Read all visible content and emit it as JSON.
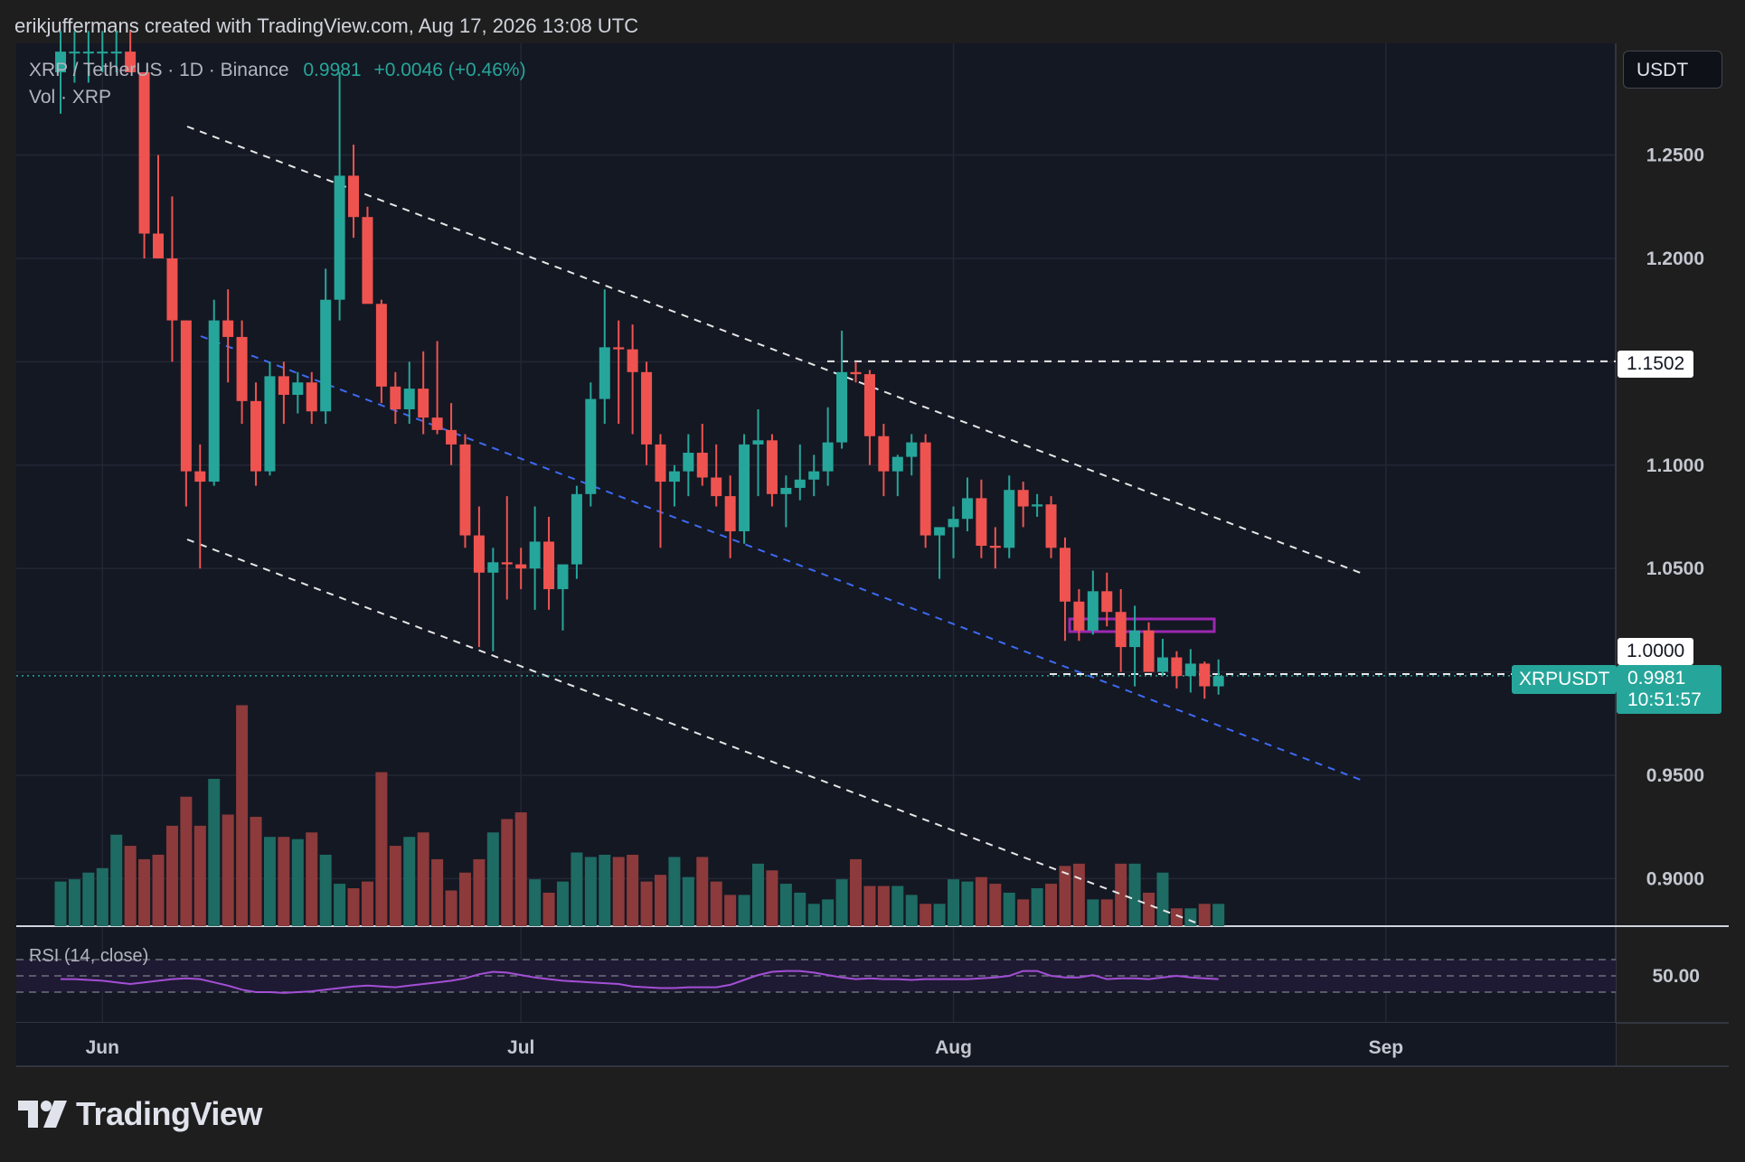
{
  "header": {
    "credit": "erikjuffermans created with TradingView.com, Aug 17, 2026 13:08 UTC"
  },
  "toolbar": {
    "currency_button": "USDT"
  },
  "legend": {
    "symbol": "XRP / TetherUS · 1D · Binance",
    "last": "0.9981",
    "change": "+0.0046 (+0.46%)",
    "volume": "Vol · XRP"
  },
  "rsi": {
    "label": "RSI (14, close)",
    "level_label": "50.00"
  },
  "price_tags": {
    "level_1": "1.1502",
    "level_2": "1.0000",
    "symbol": "XRPUSDT",
    "current": "0.9981",
    "countdown": "10:51:57"
  },
  "brand": {
    "name": "TradingView"
  },
  "colors": {
    "up": "#26a69a",
    "down": "#ef5350",
    "background": "#141823",
    "channel": "#ffffff",
    "midline": "#2962ff",
    "zone": "#9c27b0",
    "rsi": "#a34fd6"
  },
  "chart_data": {
    "type": "candlestick",
    "symbol": "XRP / TetherUS",
    "interval": "1D",
    "exchange": "Binance",
    "y_axis": {
      "ticks": [
        0.9,
        0.95,
        1.0,
        1.05,
        1.1,
        1.15,
        1.2,
        1.25
      ],
      "tick_labels": [
        "0.9000",
        "0.9500",
        "1.0500",
        "1.1000",
        "1.2000",
        "1.2500"
      ],
      "range": [
        0.877,
        1.304
      ]
    },
    "x_axis": {
      "labels": [
        "Jun",
        "Jul",
        "Aug",
        "Sep"
      ],
      "label_day_index": [
        3,
        33,
        64,
        95
      ]
    },
    "candles": [
      [
        1.29,
        1.31,
        1.27,
        1.3
      ],
      [
        1.3,
        1.31,
        1.285,
        1.3
      ],
      [
        1.3,
        1.31,
        1.285,
        1.3
      ],
      [
        1.3,
        1.31,
        1.29,
        1.3
      ],
      [
        1.3,
        1.31,
        1.29,
        1.3
      ],
      [
        1.3,
        1.31,
        1.29,
        1.29
      ],
      [
        1.29,
        1.29,
        1.2,
        1.212
      ],
      [
        1.212,
        1.25,
        1.2,
        1.2
      ],
      [
        1.2,
        1.23,
        1.15,
        1.17
      ],
      [
        1.17,
        1.17,
        1.08,
        1.097
      ],
      [
        1.097,
        1.11,
        1.05,
        1.092
      ],
      [
        1.092,
        1.18,
        1.09,
        1.17
      ],
      [
        1.17,
        1.185,
        1.14,
        1.162
      ],
      [
        1.162,
        1.17,
        1.12,
        1.131
      ],
      [
        1.131,
        1.14,
        1.09,
        1.097
      ],
      [
        1.097,
        1.15,
        1.095,
        1.143
      ],
      [
        1.143,
        1.15,
        1.12,
        1.134
      ],
      [
        1.134,
        1.145,
        1.125,
        1.14
      ],
      [
        1.14,
        1.145,
        1.12,
        1.126
      ],
      [
        1.126,
        1.195,
        1.12,
        1.18
      ],
      [
        1.18,
        1.29,
        1.17,
        1.24
      ],
      [
        1.24,
        1.255,
        1.21,
        1.22
      ],
      [
        1.22,
        1.225,
        1.18,
        1.178
      ],
      [
        1.178,
        1.18,
        1.13,
        1.138
      ],
      [
        1.138,
        1.145,
        1.12,
        1.127
      ],
      [
        1.127,
        1.15,
        1.12,
        1.137
      ],
      [
        1.137,
        1.155,
        1.115,
        1.123
      ],
      [
        1.123,
        1.16,
        1.115,
        1.117
      ],
      [
        1.117,
        1.13,
        1.1,
        1.11
      ],
      [
        1.11,
        1.115,
        1.06,
        1.066
      ],
      [
        1.066,
        1.08,
        1.012,
        1.048
      ],
      [
        1.048,
        1.06,
        1.01,
        1.053
      ],
      [
        1.053,
        1.085,
        1.035,
        1.052
      ],
      [
        1.052,
        1.06,
        1.04,
        1.05
      ],
      [
        1.05,
        1.08,
        1.03,
        1.063
      ],
      [
        1.063,
        1.075,
        1.03,
        1.04
      ],
      [
        1.04,
        1.05,
        1.02,
        1.052
      ],
      [
        1.052,
        1.09,
        1.045,
        1.086
      ],
      [
        1.086,
        1.14,
        1.08,
        1.132
      ],
      [
        1.132,
        1.185,
        1.12,
        1.157
      ],
      [
        1.157,
        1.17,
        1.12,
        1.156
      ],
      [
        1.156,
        1.168,
        1.115,
        1.145
      ],
      [
        1.145,
        1.15,
        1.1,
        1.11
      ],
      [
        1.11,
        1.115,
        1.06,
        1.092
      ],
      [
        1.092,
        1.1,
        1.08,
        1.097
      ],
      [
        1.097,
        1.115,
        1.085,
        1.106
      ],
      [
        1.106,
        1.12,
        1.09,
        1.094
      ],
      [
        1.094,
        1.11,
        1.08,
        1.085
      ],
      [
        1.085,
        1.095,
        1.055,
        1.068
      ],
      [
        1.068,
        1.115,
        1.062,
        1.11
      ],
      [
        1.11,
        1.127,
        1.085,
        1.112
      ],
      [
        1.112,
        1.115,
        1.08,
        1.086
      ],
      [
        1.086,
        1.095,
        1.07,
        1.089
      ],
      [
        1.089,
        1.11,
        1.083,
        1.093
      ],
      [
        1.093,
        1.105,
        1.085,
        1.097
      ],
      [
        1.097,
        1.128,
        1.09,
        1.111
      ],
      [
        1.111,
        1.165,
        1.108,
        1.145
      ],
      [
        1.145,
        1.15,
        1.14,
        1.144
      ],
      [
        1.144,
        1.146,
        1.1,
        1.114
      ],
      [
        1.114,
        1.12,
        1.085,
        1.097
      ],
      [
        1.097,
        1.105,
        1.085,
        1.104
      ],
      [
        1.104,
        1.115,
        1.095,
        1.111
      ],
      [
        1.111,
        1.115,
        1.06,
        1.066
      ],
      [
        1.066,
        1.07,
        1.045,
        1.07
      ],
      [
        1.07,
        1.08,
        1.055,
        1.074
      ],
      [
        1.074,
        1.094,
        1.068,
        1.084
      ],
      [
        1.084,
        1.093,
        1.055,
        1.061
      ],
      [
        1.061,
        1.07,
        1.05,
        1.06
      ],
      [
        1.06,
        1.095,
        1.055,
        1.088
      ],
      [
        1.088,
        1.092,
        1.07,
        1.08
      ],
      [
        1.08,
        1.086,
        1.075,
        1.081
      ],
      [
        1.081,
        1.085,
        1.055,
        1.06
      ],
      [
        1.06,
        1.065,
        1.015,
        1.034
      ],
      [
        1.034,
        1.04,
        1.015,
        1.02
      ],
      [
        1.02,
        1.049,
        1.018,
        1.039
      ],
      [
        1.039,
        1.048,
        1.022,
        1.029
      ],
      [
        1.029,
        1.04,
        1.0,
        1.012
      ],
      [
        1.012,
        1.032,
        0.993,
        1.02
      ],
      [
        1.02,
        1.024,
        1.0,
        1.0
      ],
      [
        1.0,
        1.016,
        0.998,
        1.007
      ],
      [
        1.007,
        1.01,
        0.992,
        0.998
      ],
      [
        0.998,
        1.011,
        0.99,
        1.004
      ],
      [
        1.004,
        1.005,
        0.987,
        0.993
      ],
      [
        0.993,
        1.006,
        0.989,
        0.998
      ]
    ],
    "volume_profile": [
      0.2,
      0.21,
      0.24,
      0.26,
      0.41,
      0.36,
      0.3,
      0.32,
      0.45,
      0.58,
      0.45,
      0.66,
      0.5,
      0.99,
      0.49,
      0.4,
      0.4,
      0.39,
      0.42,
      0.32,
      0.19,
      0.17,
      0.2,
      0.69,
      0.36,
      0.4,
      0.42,
      0.3,
      0.16,
      0.24,
      0.3,
      0.42,
      0.48,
      0.51,
      0.21,
      0.15,
      0.2,
      0.33,
      0.31,
      0.32,
      0.31,
      0.32,
      0.2,
      0.23,
      0.31,
      0.22,
      0.31,
      0.2,
      0.14,
      0.14,
      0.28,
      0.25,
      0.19,
      0.15,
      0.1,
      0.12,
      0.21,
      0.3,
      0.18,
      0.18,
      0.18,
      0.14,
      0.1,
      0.1,
      0.21,
      0.2,
      0.22,
      0.19,
      0.15,
      0.12,
      0.17,
      0.19,
      0.27,
      0.28,
      0.12,
      0.12,
      0.28,
      0.28,
      0.15,
      0.24,
      0.08,
      0.08,
      0.1,
      0.1
    ],
    "rsi": [
      46,
      46,
      45,
      44,
      42,
      40,
      42,
      44,
      46,
      47,
      46,
      42,
      38,
      33,
      30,
      30,
      29,
      30,
      31,
      33,
      35,
      37,
      38,
      37,
      36,
      38,
      40,
      42,
      44,
      47,
      52,
      55,
      54,
      51,
      48,
      46,
      44,
      43,
      42,
      41,
      40,
      37,
      36,
      35,
      35,
      36,
      36,
      36,
      39,
      45,
      51,
      55,
      56,
      56,
      54,
      51,
      48,
      46,
      47,
      46,
      46,
      45,
      46,
      46,
      46,
      46,
      47,
      48,
      50,
      56,
      56,
      50,
      48,
      48,
      51,
      46,
      47,
      47,
      46,
      48,
      50,
      48,
      47,
      46
    ],
    "annotations": {
      "horizontal_levels": [
        1.1502,
        1.0
      ],
      "current_price": 0.9981,
      "rsi_band": [
        30,
        70
      ],
      "rsi_mid": 50
    }
  }
}
